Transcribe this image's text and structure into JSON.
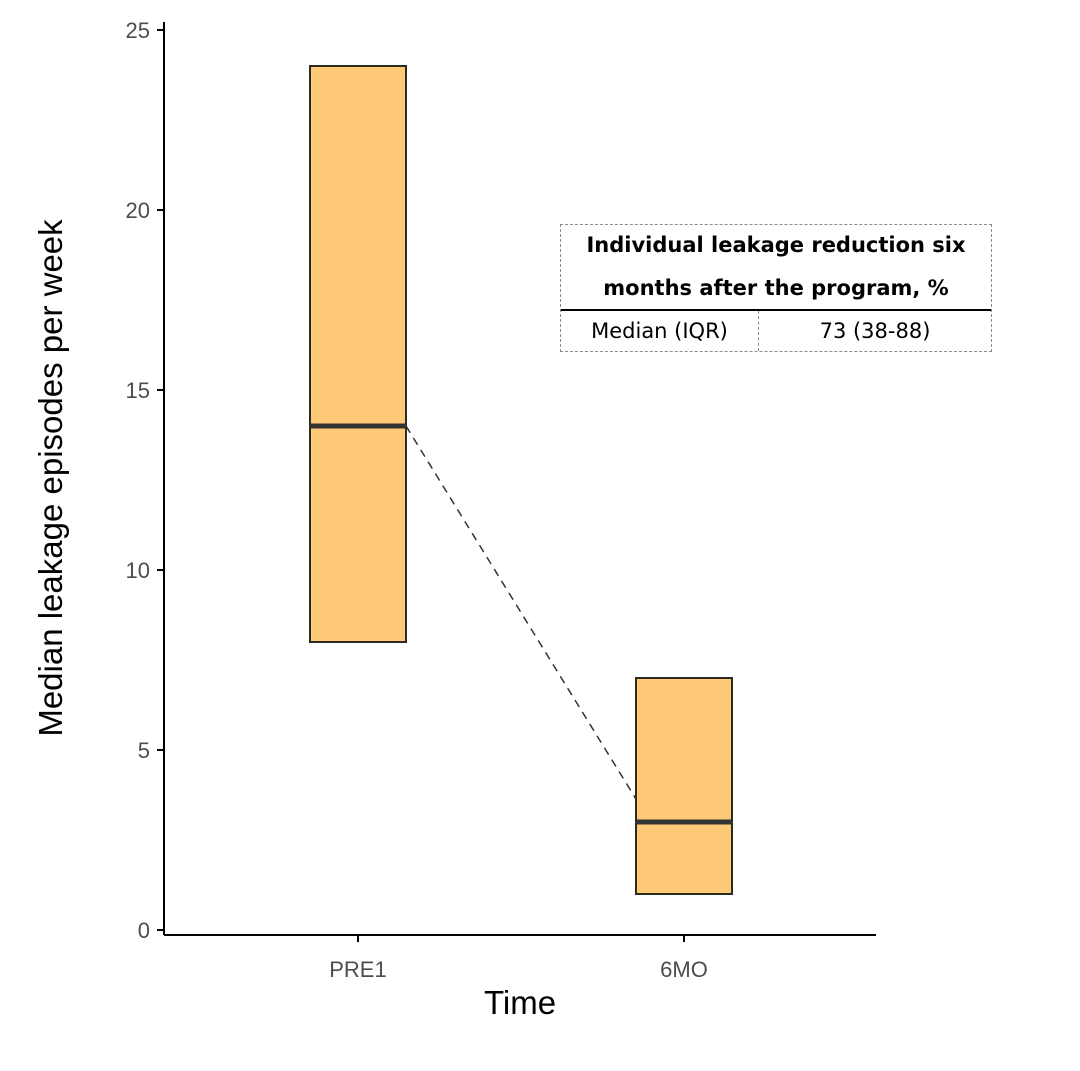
{
  "chart_data": {
    "type": "box",
    "categories": [
      "PRE1",
      "6MO"
    ],
    "boxes": [
      {
        "category": "PRE1",
        "q1": 8,
        "median": 14,
        "q3": 24
      },
      {
        "category": "6MO",
        "q1": 1,
        "median": 3,
        "q3": 7
      }
    ],
    "connector": {
      "from": "PRE1",
      "to": "6MO",
      "style": "dashed",
      "connects": "medians"
    },
    "xlabel": "Time",
    "ylabel": "Median leakage episodes per week",
    "ylim": [
      0,
      25
    ],
    "yticks": [
      0,
      5,
      10,
      15,
      20,
      25
    ],
    "grid": false,
    "colors": {
      "box_fill": "#FDC977",
      "box_stroke": "#2b2b1f",
      "median_line": "#333333",
      "axis": "#000000"
    }
  },
  "inset_table": {
    "title_line1": "Individual leakage reduction six",
    "title_line2": "months after the program, %",
    "row_label": "Median (IQR)",
    "row_value": "73 (38-88)"
  }
}
